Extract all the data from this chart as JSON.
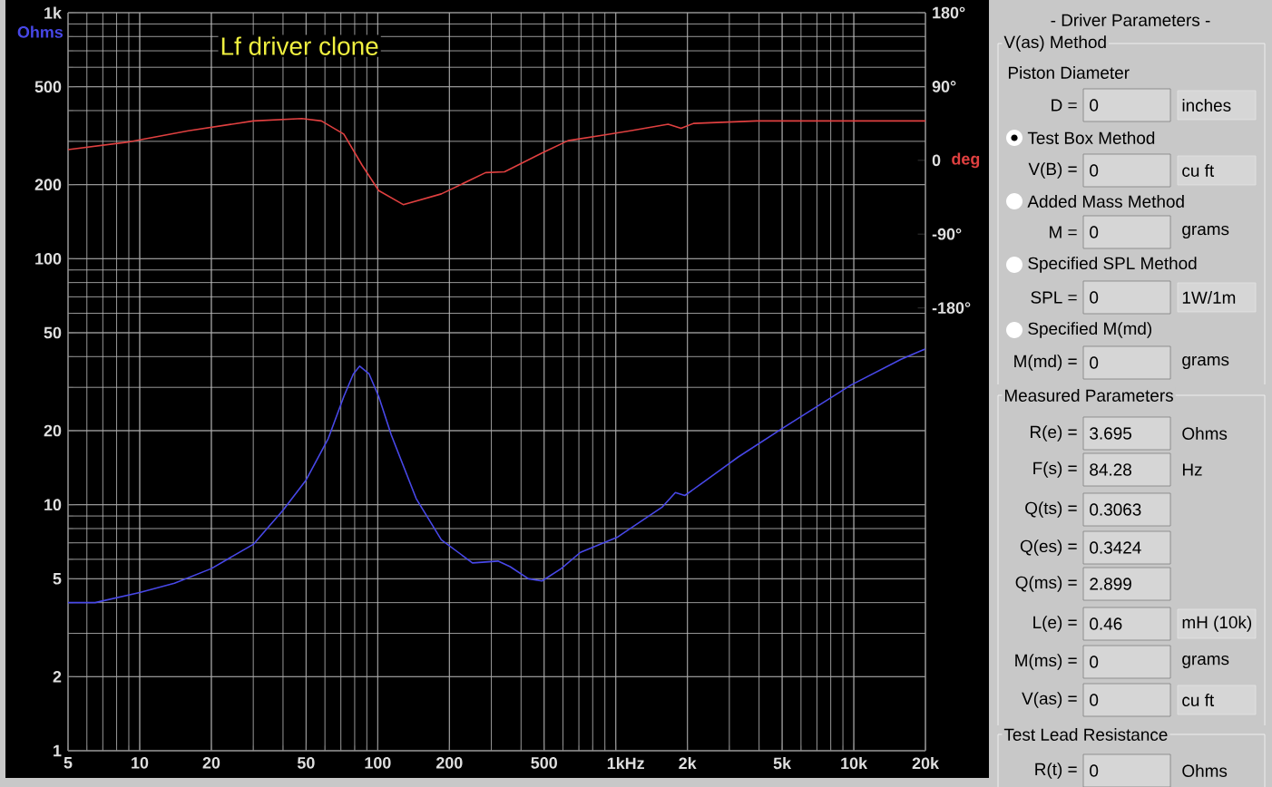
{
  "chart_data": [
    {
      "type": "line",
      "title": "Lf driver clone",
      "xlabel": "Hz",
      "ylabel": "Ohms",
      "y2label": "deg",
      "log": "xy",
      "grid": true,
      "xlim": [
        5,
        20000
      ],
      "xticks": [
        5,
        10,
        20,
        50,
        100,
        200,
        500,
        {
          "value": 1000,
          "label": "1k"
        },
        {
          "value": 2000,
          "label": "2k"
        },
        {
          "value": 5000,
          "label": "5k"
        },
        {
          "value": 10000,
          "label": "10k"
        },
        {
          "value": 20000,
          "label": "20k"
        }
      ],
      "ylim": [
        1,
        1000
      ],
      "yticks": [
        1,
        2,
        5,
        10,
        20,
        50,
        100,
        200,
        500,
        {
          "value": 1000,
          "label": "1k"
        }
      ],
      "y2lim": [
        -720,
        180
      ],
      "y2ticks": [
        {
          "value": -180,
          "label": "-180°"
        },
        {
          "value": -90,
          "label": "-90°"
        },
        0,
        {
          "value": 90,
          "label": "90°"
        },
        {
          "value": 180,
          "label": "180°"
        }
      ],
      "series": [
        {
          "color": "#4848e8",
          "x": [
            5,
            6.5,
            10,
            14,
            20,
            30,
            40,
            50,
            62,
            72,
            79,
            84,
            92,
            101,
            114,
            145,
            185,
            250,
            320,
            360,
            430,
            490,
            590,
            710,
            1020,
            1570,
            1780,
            1950,
            2270,
            3260,
            5000,
            9700,
            15800,
            20000
          ],
          "values": [
            4.0,
            4.0,
            4.4,
            4.8,
            5.5,
            6.9,
            9.5,
            12.6,
            18.6,
            27.5,
            34,
            36.6,
            34,
            27.5,
            19.2,
            10.6,
            7.2,
            5.8,
            5.9,
            5.6,
            5.0,
            4.9,
            5.5,
            6.4,
            7.4,
            9.8,
            11.2,
            10.9,
            12.1,
            15.6,
            20.4,
            30.6,
            39,
            43
          ]
        },
        {
          "color": "#e04040",
          "axis": "y2",
          "x": [
            5,
            8.8,
            16,
            30,
            48,
            58,
            72,
            86,
            101,
            128,
            185,
            284,
            341,
            490,
            630,
            900,
            1150,
            1660,
            1880,
            2120,
            3900,
            20000
          ],
          "values": [
            13,
            22,
            36,
            48,
            51,
            48,
            32,
            -6,
            -37,
            -54,
            -41,
            -15,
            -14,
            9,
            24,
            31,
            36,
            44,
            39,
            45,
            48,
            48
          ]
        }
      ]
    },
    {
      "type": "other",
      "title": "- Driver Parameters -",
      "annotations": [
        "V(as) Method",
        "Piston Diameter",
        "D =",
        "0",
        "inches",
        "Test Box Method",
        "V(B) =",
        "0",
        "cu ft",
        "Added Mass Method",
        "M =",
        "0",
        "grams",
        "Specified SPL Method",
        "SPL =",
        "0",
        "1W/1m",
        "Specified M(md)",
        "M(md) =",
        "0",
        "grams",
        "Measured Parameters",
        "R(e) =",
        "3.695",
        "Ohms",
        "F(s) =",
        "84.28",
        "Hz",
        "Q(ts) =",
        "0.3063",
        "Q(es) =",
        "0.3424",
        "Q(ms) =",
        "2.899",
        "L(e) =",
        "0.46",
        "mH (10k)",
        "M(ms) =",
        "0",
        "grams",
        "V(as) =",
        "0",
        "cu ft",
        "Test Lead Resistance",
        "R(t) =",
        "0",
        "Ohms"
      ]
    }
  ]
}
